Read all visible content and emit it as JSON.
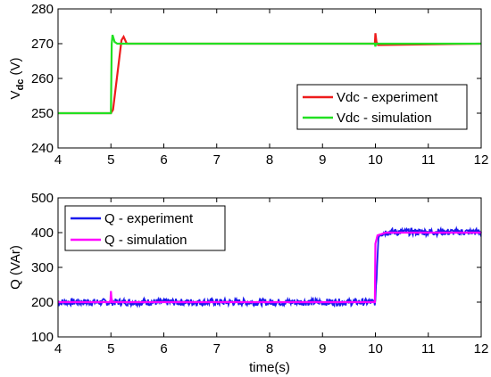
{
  "chart_data": [
    {
      "type": "line",
      "ylabel_main": "V",
      "ylabel_sub": "dc",
      "ylabel_unit": " (V)",
      "xlabel": "",
      "xlim": [
        4,
        12
      ],
      "ylim": [
        240,
        280
      ],
      "xticks": [
        4,
        5,
        6,
        7,
        8,
        9,
        10,
        11,
        12
      ],
      "yticks": [
        240,
        250,
        260,
        270,
        280
      ],
      "legend_placement": "bottom-right",
      "series": [
        {
          "name": "Vdc - experiment",
          "color": "#ee1c1c",
          "x": [
            4,
            5.0,
            5.04,
            5.2,
            5.24,
            5.3,
            9.99,
            10.0,
            10.02,
            10.05,
            12
          ],
          "y": [
            250,
            250,
            251,
            271,
            272,
            270,
            270,
            273,
            270.5,
            269.6,
            270
          ]
        },
        {
          "name": "Vdc - simulation",
          "color": "#22e022",
          "x": [
            4,
            5.0,
            5.015,
            5.03,
            5.07,
            5.12,
            9.99,
            10.0,
            10.01,
            10.03,
            12
          ],
          "y": [
            250,
            250,
            270,
            272.5,
            270.5,
            270,
            270,
            269.2,
            270,
            270,
            270
          ]
        }
      ]
    },
    {
      "type": "line",
      "ylabel": "Q (VAr)",
      "xlabel": "time(s)",
      "xlim": [
        4,
        12
      ],
      "ylim": [
        100,
        500
      ],
      "xticks": [
        4,
        5,
        6,
        7,
        8,
        9,
        10,
        11,
        12
      ],
      "yticks": [
        100,
        200,
        300,
        400,
        500
      ],
      "legend_placement": "top-left",
      "series": [
        {
          "name": "Q - experiment",
          "color": "#1a1aee",
          "x": [
            4,
            9.98,
            10.0,
            10.06,
            10.2,
            12
          ],
          "y": [
            200,
            200,
            200,
            395,
            402,
            402
          ],
          "noise_band": 10
        },
        {
          "name": "Q - simulation",
          "color": "#ff00ff",
          "x": [
            4,
            4.99,
            5.0,
            5.01,
            5.03,
            9.99,
            10.0,
            10.04,
            10.2,
            12
          ],
          "y": [
            200,
            200,
            232,
            210,
            200,
            200,
            368,
            392,
            400,
            400
          ]
        }
      ]
    }
  ]
}
